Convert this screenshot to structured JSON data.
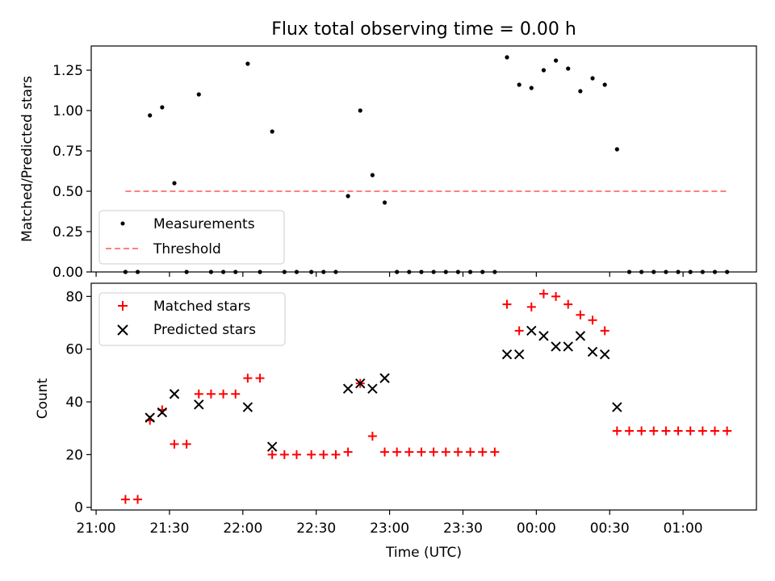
{
  "chart_data": [
    {
      "type": "scatter",
      "title": "Flux total observing time = 0.00 h",
      "xlabel": "",
      "ylabel": "Matched/Predicted stars",
      "ylim": [
        0,
        1.4
      ],
      "yticks": [
        "0.00",
        "0.25",
        "0.50",
        "0.75",
        "1.00",
        "1.25"
      ],
      "grid": false,
      "legend_position": "lower-left",
      "x_unit": "minutes after 21:00 UTC",
      "series": [
        {
          "name": "Measurements",
          "style": "dot",
          "color": "#000000",
          "points": [
            {
              "x": 12,
              "y": 0.0
            },
            {
              "x": 17,
              "y": 0.0
            },
            {
              "x": 22,
              "y": 0.97
            },
            {
              "x": 27,
              "y": 1.02
            },
            {
              "x": 32,
              "y": 0.55
            },
            {
              "x": 37,
              "y": 0.0
            },
            {
              "x": 42,
              "y": 1.1
            },
            {
              "x": 47,
              "y": 0.0
            },
            {
              "x": 52,
              "y": 0.0
            },
            {
              "x": 57,
              "y": 0.0
            },
            {
              "x": 62,
              "y": 1.29
            },
            {
              "x": 67,
              "y": 0.0
            },
            {
              "x": 72,
              "y": 0.87
            },
            {
              "x": 77,
              "y": 0.0
            },
            {
              "x": 82,
              "y": 0.0
            },
            {
              "x": 88,
              "y": 0.0
            },
            {
              "x": 93,
              "y": 0.0
            },
            {
              "x": 98,
              "y": 0.0
            },
            {
              "x": 103,
              "y": 0.47
            },
            {
              "x": 108,
              "y": 1.0
            },
            {
              "x": 113,
              "y": 0.6
            },
            {
              "x": 118,
              "y": 0.43
            },
            {
              "x": 123,
              "y": 0.0
            },
            {
              "x": 128,
              "y": 0.0
            },
            {
              "x": 133,
              "y": 0.0
            },
            {
              "x": 138,
              "y": 0.0
            },
            {
              "x": 143,
              "y": 0.0
            },
            {
              "x": 148,
              "y": 0.0
            },
            {
              "x": 153,
              "y": 0.0
            },
            {
              "x": 158,
              "y": 0.0
            },
            {
              "x": 163,
              "y": 0.0
            },
            {
              "x": 168,
              "y": 1.33
            },
            {
              "x": 173,
              "y": 1.16
            },
            {
              "x": 178,
              "y": 1.14
            },
            {
              "x": 183,
              "y": 1.25
            },
            {
              "x": 188,
              "y": 1.31
            },
            {
              "x": 193,
              "y": 1.26
            },
            {
              "x": 198,
              "y": 1.12
            },
            {
              "x": 203,
              "y": 1.2
            },
            {
              "x": 208,
              "y": 1.16
            },
            {
              "x": 213,
              "y": 0.76
            },
            {
              "x": 218,
              "y": 0.0
            },
            {
              "x": 223,
              "y": 0.0
            },
            {
              "x": 228,
              "y": 0.0
            },
            {
              "x": 233,
              "y": 0.0
            },
            {
              "x": 238,
              "y": 0.0
            },
            {
              "x": 243,
              "y": 0.0
            },
            {
              "x": 248,
              "y": 0.0
            },
            {
              "x": 253,
              "y": 0.0
            },
            {
              "x": 258,
              "y": 0.0
            }
          ]
        },
        {
          "name": "Threshold",
          "style": "dashed-line",
          "color": "#ff7f7f",
          "points": [
            {
              "x": 12,
              "y": 0.5
            },
            {
              "x": 258,
              "y": 0.5
            }
          ]
        }
      ]
    },
    {
      "type": "scatter",
      "title": "",
      "xlabel": "Time (UTC)",
      "ylabel": "Count",
      "ylim": [
        -1,
        85
      ],
      "yticks": [
        "0",
        "20",
        "40",
        "60",
        "80"
      ],
      "xticks": [
        "21:00",
        "21:30",
        "22:00",
        "22:30",
        "23:00",
        "23:30",
        "00:00",
        "00:30",
        "01:00"
      ],
      "grid": false,
      "legend_position": "top-left",
      "x_unit": "minutes after 21:00 UTC",
      "series": [
        {
          "name": "Matched stars",
          "style": "plus",
          "color": "#ff0000",
          "points": [
            {
              "x": 12,
              "y": 3
            },
            {
              "x": 17,
              "y": 3
            },
            {
              "x": 22,
              "y": 33
            },
            {
              "x": 27,
              "y": 37
            },
            {
              "x": 32,
              "y": 24
            },
            {
              "x": 37,
              "y": 24
            },
            {
              "x": 42,
              "y": 43
            },
            {
              "x": 47,
              "y": 43
            },
            {
              "x": 52,
              "y": 43
            },
            {
              "x": 57,
              "y": 43
            },
            {
              "x": 62,
              "y": 49
            },
            {
              "x": 67,
              "y": 49
            },
            {
              "x": 72,
              "y": 20
            },
            {
              "x": 77,
              "y": 20
            },
            {
              "x": 82,
              "y": 20
            },
            {
              "x": 88,
              "y": 20
            },
            {
              "x": 93,
              "y": 20
            },
            {
              "x": 98,
              "y": 20
            },
            {
              "x": 103,
              "y": 21
            },
            {
              "x": 108,
              "y": 47
            },
            {
              "x": 113,
              "y": 27
            },
            {
              "x": 118,
              "y": 21
            },
            {
              "x": 123,
              "y": 21
            },
            {
              "x": 128,
              "y": 21
            },
            {
              "x": 133,
              "y": 21
            },
            {
              "x": 138,
              "y": 21
            },
            {
              "x": 143,
              "y": 21
            },
            {
              "x": 148,
              "y": 21
            },
            {
              "x": 153,
              "y": 21
            },
            {
              "x": 158,
              "y": 21
            },
            {
              "x": 163,
              "y": 21
            },
            {
              "x": 168,
              "y": 77
            },
            {
              "x": 173,
              "y": 67
            },
            {
              "x": 178,
              "y": 76
            },
            {
              "x": 183,
              "y": 81
            },
            {
              "x": 188,
              "y": 80
            },
            {
              "x": 193,
              "y": 77
            },
            {
              "x": 198,
              "y": 73
            },
            {
              "x": 203,
              "y": 71
            },
            {
              "x": 208,
              "y": 67
            },
            {
              "x": 213,
              "y": 29
            },
            {
              "x": 218,
              "y": 29
            },
            {
              "x": 223,
              "y": 29
            },
            {
              "x": 228,
              "y": 29
            },
            {
              "x": 233,
              "y": 29
            },
            {
              "x": 238,
              "y": 29
            },
            {
              "x": 243,
              "y": 29
            },
            {
              "x": 248,
              "y": 29
            },
            {
              "x": 253,
              "y": 29
            },
            {
              "x": 258,
              "y": 29
            }
          ]
        },
        {
          "name": "Predicted stars",
          "style": "x",
          "color": "#000000",
          "points": [
            {
              "x": 22,
              "y": 34
            },
            {
              "x": 27,
              "y": 36
            },
            {
              "x": 32,
              "y": 43
            },
            {
              "x": 42,
              "y": 39
            },
            {
              "x": 62,
              "y": 38
            },
            {
              "x": 72,
              "y": 23
            },
            {
              "x": 103,
              "y": 45
            },
            {
              "x": 108,
              "y": 47
            },
            {
              "x": 113,
              "y": 45
            },
            {
              "x": 118,
              "y": 49
            },
            {
              "x": 168,
              "y": 58
            },
            {
              "x": 173,
              "y": 58
            },
            {
              "x": 178,
              "y": 67
            },
            {
              "x": 183,
              "y": 65
            },
            {
              "x": 188,
              "y": 61
            },
            {
              "x": 193,
              "y": 61
            },
            {
              "x": 198,
              "y": 65
            },
            {
              "x": 203,
              "y": 59
            },
            {
              "x": 208,
              "y": 58
            },
            {
              "x": 213,
              "y": 38
            }
          ]
        }
      ]
    }
  ]
}
